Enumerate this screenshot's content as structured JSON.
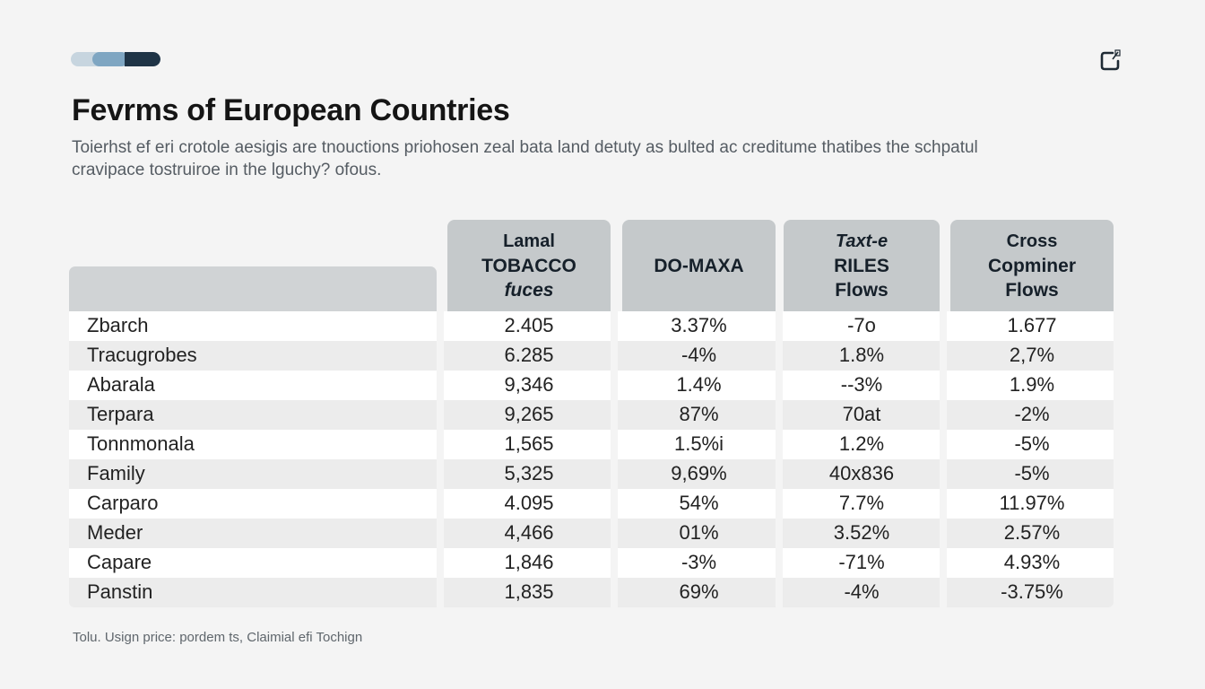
{
  "progress": {
    "value": 0.6
  },
  "header": {
    "title": "Fevrms of European Countries",
    "subtitle": "Toierhst ef eri crotole aesigis are tnouctions priohosen zeal bata land detuty as bulted ac creditume thatibes the schpatul cravipace tostruiroe in the lguchy? ofous.",
    "corner_icon": "edit-note-icon"
  },
  "table": {
    "columns": [
      {
        "lines": [
          "Lamal",
          "TOBACCO",
          "fuces"
        ]
      },
      {
        "lines": [
          "DO-MAXA"
        ]
      },
      {
        "lines": [
          "Taxt-e",
          "RILES",
          "Flows"
        ]
      },
      {
        "lines": [
          "Cross",
          "Copminer",
          "Flows"
        ]
      }
    ],
    "rows": [
      {
        "name": "Zbarch",
        "values": [
          "2.405",
          "3.37%",
          "-7o",
          "1.677"
        ]
      },
      {
        "name": "Tracugrobes",
        "values": [
          "6.285",
          "-4%",
          "1.8%",
          "2,7%"
        ]
      },
      {
        "name": "Abarala",
        "values": [
          "9,346",
          "1.4%",
          "--3%",
          "1.9%"
        ]
      },
      {
        "name": "Terpara",
        "values": [
          "9,265",
          "87%",
          "70at",
          "-2%"
        ]
      },
      {
        "name": "Tonnmonala",
        "values": [
          "1,565",
          "1.5%i",
          "1.2%",
          "-5%"
        ]
      },
      {
        "name": "Family",
        "values": [
          "5,325",
          "9,69%",
          "40x836",
          "-5%"
        ]
      },
      {
        "name": "Carparo",
        "values": [
          "4.095",
          "54%",
          "7.7%",
          "11.97%"
        ]
      },
      {
        "name": "Meder",
        "values": [
          "4,466",
          "01%",
          "3.52%",
          "2.57%"
        ]
      },
      {
        "name": "Capare",
        "values": [
          "1,846",
          "-3%",
          "-71%",
          "4.93%"
        ]
      },
      {
        "name": "Panstin",
        "values": [
          "1,835",
          "69%",
          "-4%",
          "-3.75%"
        ]
      }
    ]
  },
  "footnote": "Tolu. Usign price: pordem ts, Claimial efi Tochign",
  "colors": {
    "header_fill": "#c5c9cb",
    "row_light": "#ffffff",
    "row_grey": "#ececec",
    "accent_dark": "#1f3446",
    "accent_mid": "#7fa6c2"
  }
}
